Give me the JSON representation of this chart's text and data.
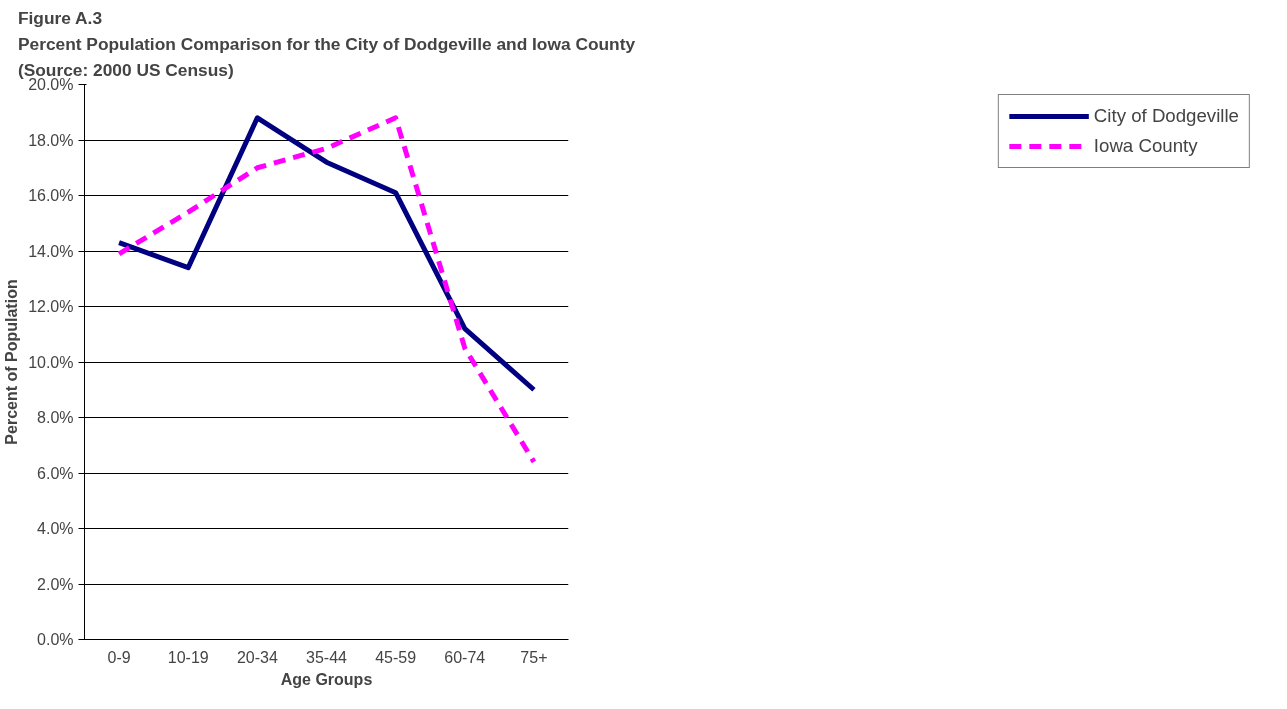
{
  "chart_data": {
    "type": "line",
    "title": "Figure A.3\nPercent Population Comparison for the City of Dodgeville and Iowa County\n(Source:  2000 US Census)",
    "xlabel": "Age Groups",
    "ylabel": "Percent of Population",
    "categories": [
      "0-9",
      "10-19",
      "20-34",
      "35-44",
      "45-59",
      "60-74",
      "75+"
    ],
    "series": [
      {
        "name": "City of Dodgeville",
        "color": "#000080",
        "line_style": "solid",
        "values": [
          14.3,
          13.4,
          18.8,
          17.2,
          16.1,
          11.2,
          9.0
        ]
      },
      {
        "name": "Iowa County",
        "color": "#ff00ff",
        "line_style": "dashed",
        "values": [
          13.9,
          15.4,
          17.0,
          17.7,
          18.8,
          10.5,
          6.4
        ]
      }
    ],
    "ylim": [
      0,
      20
    ],
    "yticks": [
      {
        "value": 0,
        "label": "0.0%"
      },
      {
        "value": 2,
        "label": "2.0%"
      },
      {
        "value": 4,
        "label": "4.0%"
      },
      {
        "value": 6,
        "label": "6.0%"
      },
      {
        "value": 8,
        "label": "8.0%"
      },
      {
        "value": 10,
        "label": "10.0%"
      },
      {
        "value": 12,
        "label": "12.0%"
      },
      {
        "value": 14,
        "label": "14.0%"
      },
      {
        "value": 16,
        "label": "16.0%"
      },
      {
        "value": 18,
        "label": "18.0%"
      },
      {
        "value": 20,
        "label": "20.0%"
      }
    ],
    "grid": "y",
    "legend": "right",
    "marker": "none"
  }
}
